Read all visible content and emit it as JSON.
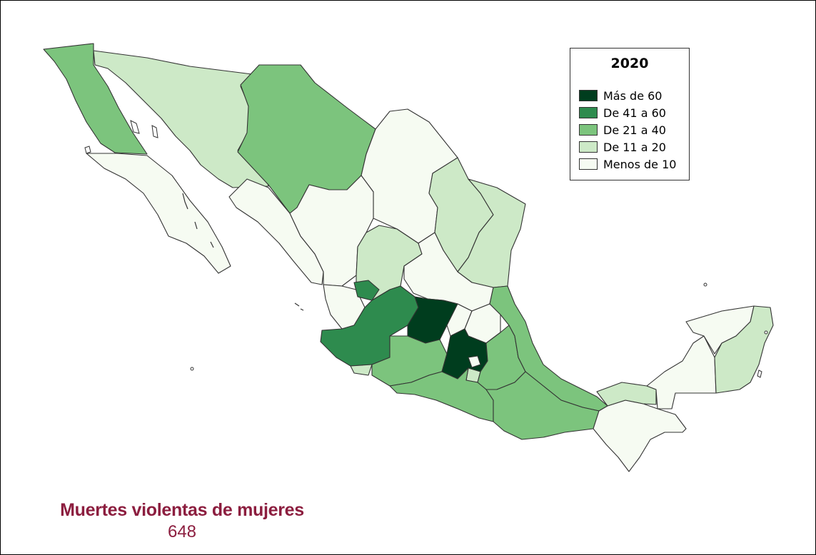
{
  "map": {
    "legend": {
      "title": "2020",
      "classes": [
        {
          "label": "Más de 60",
          "color": "#003d1e"
        },
        {
          "label": "De 41 a 60",
          "color": "#2e8b4e"
        },
        {
          "label": "De 21 a 40",
          "color": "#7cc47d"
        },
        {
          "label": "De 11 a 20",
          "color": "#cde9c7"
        },
        {
          "label": "Menos de 10",
          "color": "#f6fbf2"
        }
      ]
    }
  },
  "caption": {
    "title": "Muertes violentas de mujeres",
    "value": "648"
  },
  "colors": {
    "caption": "#8c1e3f",
    "border": "#333333"
  }
}
